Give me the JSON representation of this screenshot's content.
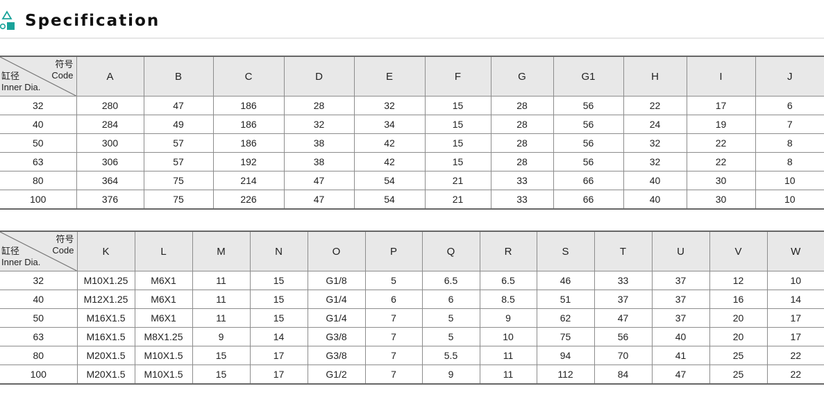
{
  "header": {
    "title": "Specification",
    "accent": "#1aa39a"
  },
  "corner": {
    "code_cn": "符号",
    "code_en": "Code",
    "dia_cn": "缸径",
    "dia_en": "Inner Dia."
  },
  "table1": {
    "columns": [
      "A",
      "B",
      "C",
      "D",
      "E",
      "F",
      "G",
      "G1",
      "H",
      "I",
      "J"
    ],
    "rows": [
      [
        "32",
        "280",
        "47",
        "186",
        "28",
        "32",
        "15",
        "28",
        "56",
        "22",
        "17",
        "6"
      ],
      [
        "40",
        "284",
        "49",
        "186",
        "32",
        "34",
        "15",
        "28",
        "56",
        "24",
        "19",
        "7"
      ],
      [
        "50",
        "300",
        "57",
        "186",
        "38",
        "42",
        "15",
        "28",
        "56",
        "32",
        "22",
        "8"
      ],
      [
        "63",
        "306",
        "57",
        "192",
        "38",
        "42",
        "15",
        "28",
        "56",
        "32",
        "22",
        "8"
      ],
      [
        "80",
        "364",
        "75",
        "214",
        "47",
        "54",
        "21",
        "33",
        "66",
        "40",
        "30",
        "10"
      ],
      [
        "100",
        "376",
        "75",
        "226",
        "47",
        "54",
        "21",
        "33",
        "66",
        "40",
        "30",
        "10"
      ]
    ]
  },
  "table2": {
    "columns": [
      "K",
      "L",
      "M",
      "N",
      "O",
      "P",
      "Q",
      "R",
      "S",
      "T",
      "U",
      "V",
      "W"
    ],
    "rows": [
      [
        "32",
        "M10X1.25",
        "M6X1",
        "11",
        "15",
        "G1/8",
        "5",
        "6.5",
        "6.5",
        "46",
        "33",
        "37",
        "12",
        "10"
      ],
      [
        "40",
        "M12X1.25",
        "M6X1",
        "11",
        "15",
        "G1/4",
        "6",
        "6",
        "8.5",
        "51",
        "37",
        "37",
        "16",
        "14"
      ],
      [
        "50",
        "M16X1.5",
        "M6X1",
        "11",
        "15",
        "G1/4",
        "7",
        "5",
        "9",
        "62",
        "47",
        "37",
        "20",
        "17"
      ],
      [
        "63",
        "M16X1.5",
        "M8X1.25",
        "9",
        "14",
        "G3/8",
        "7",
        "5",
        "10",
        "75",
        "56",
        "40",
        "20",
        "17"
      ],
      [
        "80",
        "M20X1.5",
        "M10X1.5",
        "15",
        "17",
        "G3/8",
        "7",
        "5.5",
        "11",
        "94",
        "70",
        "41",
        "25",
        "22"
      ],
      [
        "100",
        "M20X1.5",
        "M10X1.5",
        "15",
        "17",
        "G1/2",
        "7",
        "9",
        "11",
        "112",
        "84",
        "47",
        "25",
        "22"
      ]
    ]
  }
}
